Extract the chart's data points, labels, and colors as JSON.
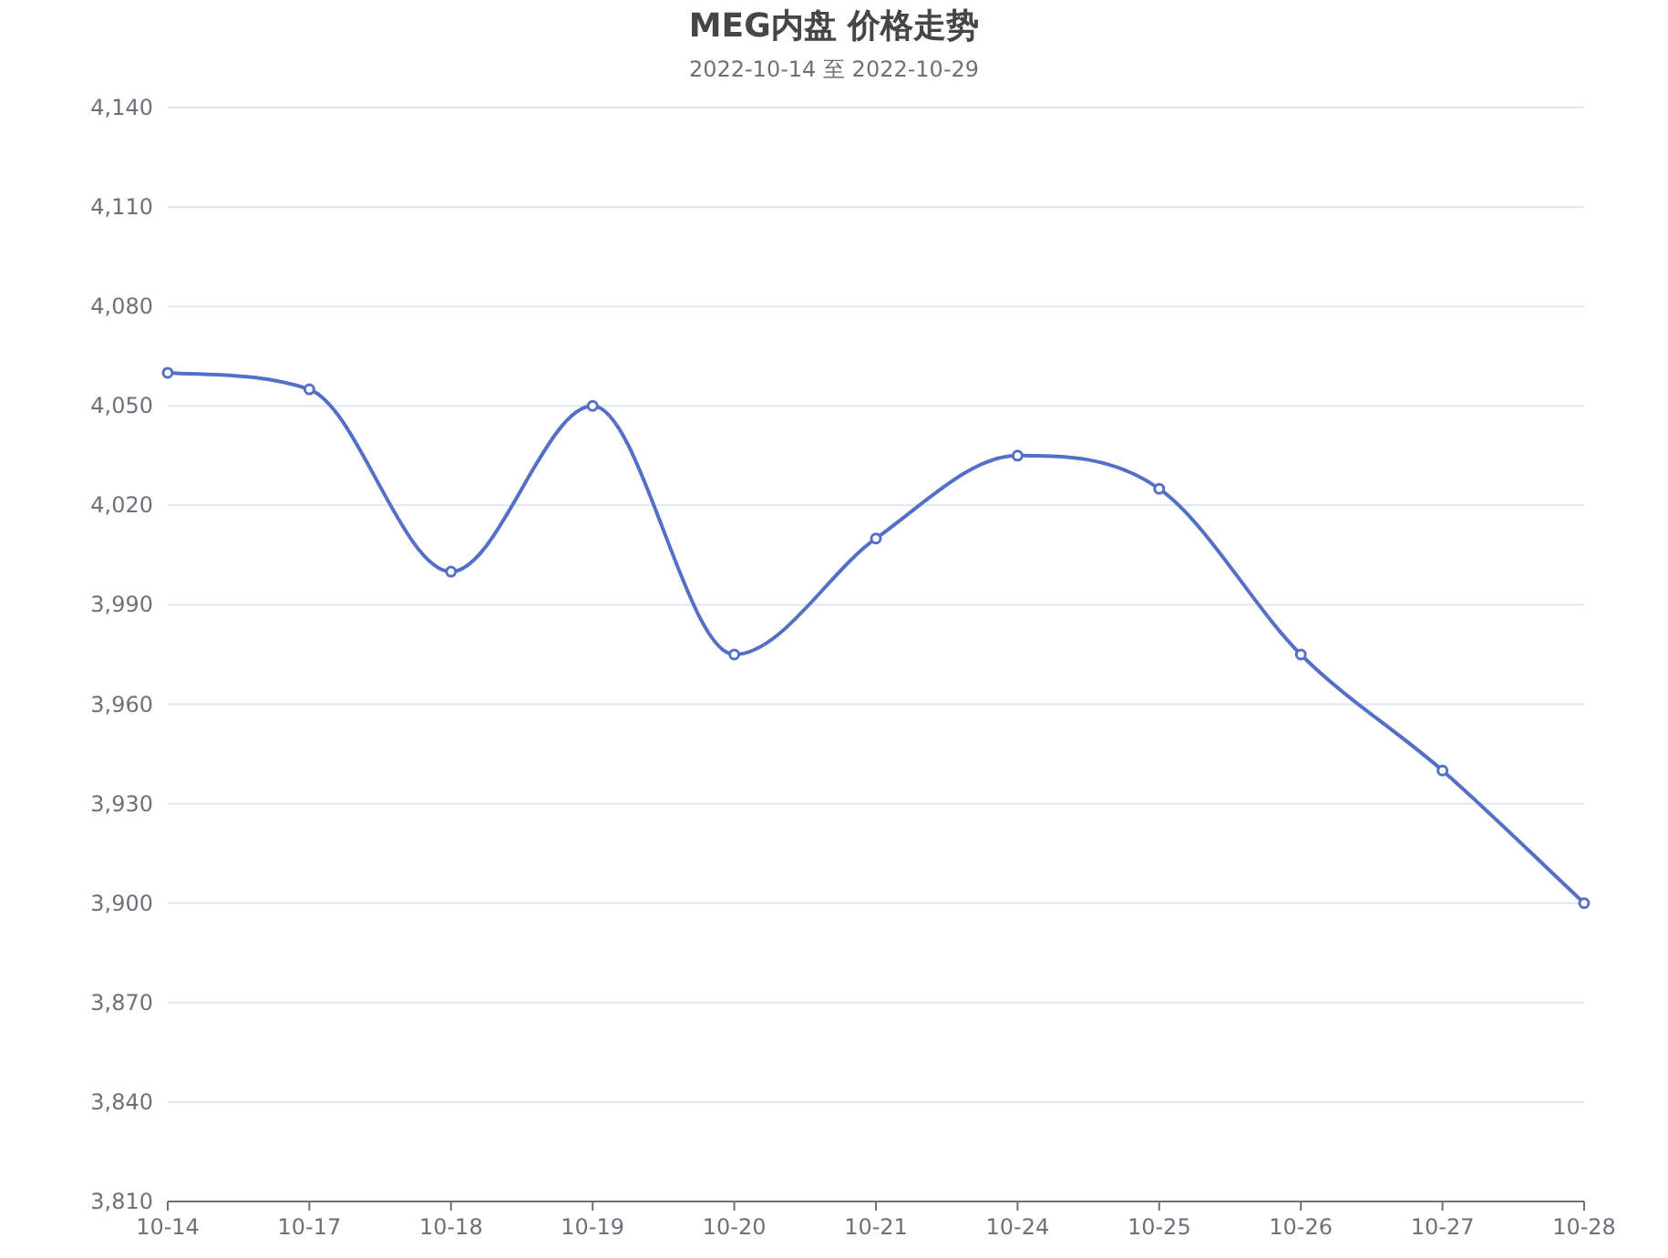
{
  "chart_data": {
    "type": "line",
    "title": "MEG内盘 价格走势",
    "subtitle": "2022-10-14 至 2022-10-29",
    "categories": [
      "10-14",
      "10-17",
      "10-18",
      "10-19",
      "10-20",
      "10-21",
      "10-24",
      "10-25",
      "10-26",
      "10-27",
      "10-28"
    ],
    "series": [
      {
        "color": "#5470c6",
        "values": [
          4060,
          4055,
          4000,
          4050,
          3975,
          4010,
          4035,
          4025,
          3975,
          3940,
          3900
        ]
      }
    ],
    "ylim": [
      3810,
      4140
    ],
    "yticks": [
      {
        "value": 3810,
        "label": "3,810"
      },
      {
        "value": 3840,
        "label": "3,840"
      },
      {
        "value": 3870,
        "label": "3,870"
      },
      {
        "value": 3900,
        "label": "3,900"
      },
      {
        "value": 3930,
        "label": "3,930"
      },
      {
        "value": 3960,
        "label": "3,960"
      },
      {
        "value": 3990,
        "label": "3,990"
      },
      {
        "value": 4020,
        "label": "4,020"
      },
      {
        "value": 4050,
        "label": "4,050"
      },
      {
        "value": 4080,
        "label": "4,080"
      },
      {
        "value": 4110,
        "label": "4,110"
      },
      {
        "value": 4140,
        "label": "4,140"
      }
    ],
    "grid": "y",
    "marker": "circle"
  }
}
